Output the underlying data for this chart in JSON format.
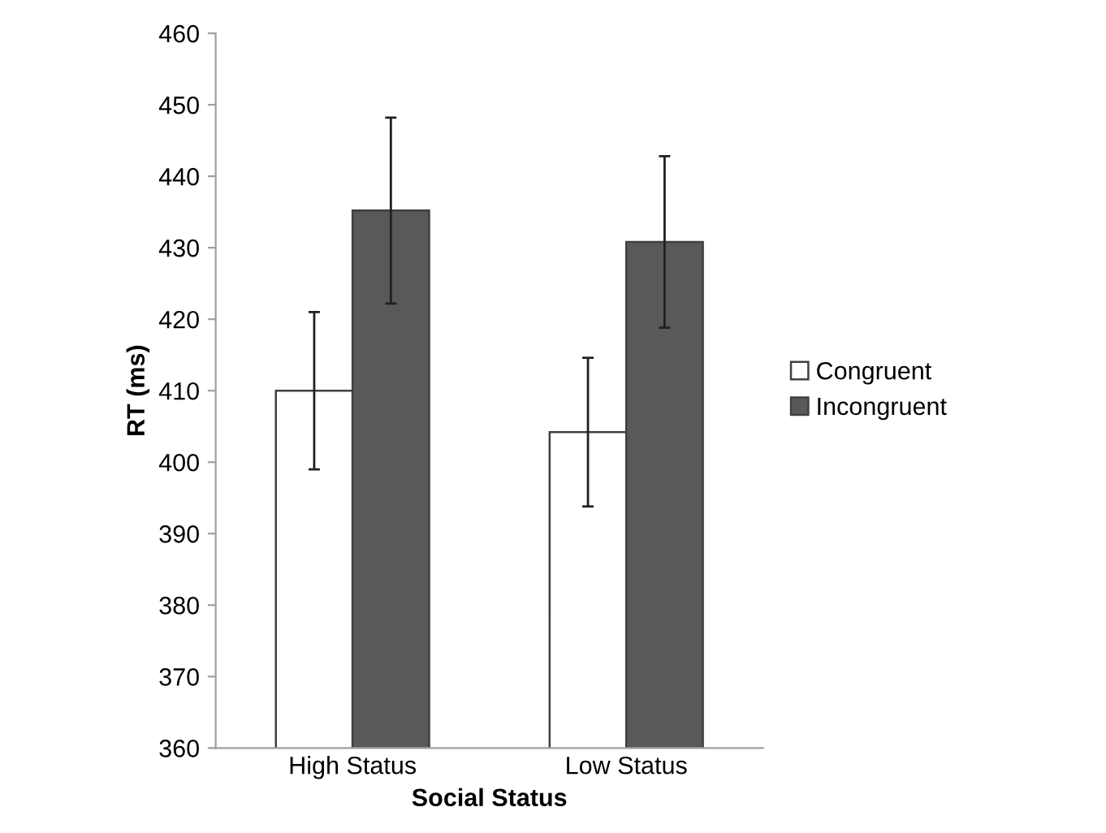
{
  "chart_data": {
    "type": "bar",
    "xlabel": "Social Status",
    "ylabel": "RT (ms)",
    "categories": [
      "High Status",
      "Low Status"
    ],
    "series": [
      {
        "name": "Congruent",
        "color": "#ffffff",
        "values": [
          410,
          404.2
        ],
        "errors": [
          11,
          10.4
        ]
      },
      {
        "name": "Incongruent",
        "color": "#595959",
        "values": [
          435.2,
          430.8
        ],
        "errors": [
          13,
          12
        ]
      }
    ],
    "ylim": [
      360,
      460
    ],
    "yticks": [
      360,
      370,
      380,
      390,
      400,
      410,
      420,
      430,
      440,
      450,
      460
    ],
    "grid": false,
    "legend": "right"
  }
}
